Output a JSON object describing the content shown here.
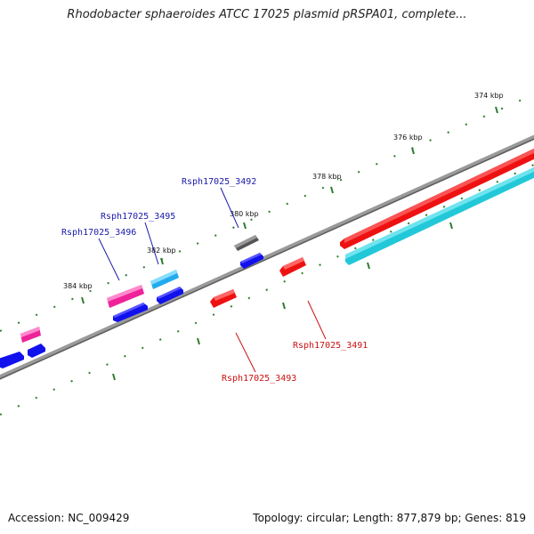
{
  "title": "Rhodobacter sphaeroides ATCC 17025 plasmid pRSPA01, complete...",
  "footer": {
    "accession": "Accession: NC_009429",
    "summary": "Topology: circular; Length: 877,879 bp; Genes: 819"
  },
  "scale_labels": [
    "374 kbp",
    "376 kbp",
    "378 kbp",
    "380 kbp",
    "382 kbp",
    "384 kbp"
  ],
  "gene_labels": {
    "g3492": "Rsph17025_3492",
    "g3495": "Rsph17025_3495",
    "g3496": "Rsph17025_3496",
    "g3491": "Rsph17025_3491",
    "g3493": "Rsph17025_3493"
  },
  "colors": {
    "backbone": "#7a7a7a",
    "tick": "#2e7d2e",
    "label_top": "#1a1aaa",
    "label_bottom": "#cc1111",
    "red": "#ee1111",
    "cyan": "#22c8d8",
    "blue": "#1111ee",
    "pink": "#ee2299",
    "skyblue": "#22aaee",
    "gray": "#666666"
  }
}
